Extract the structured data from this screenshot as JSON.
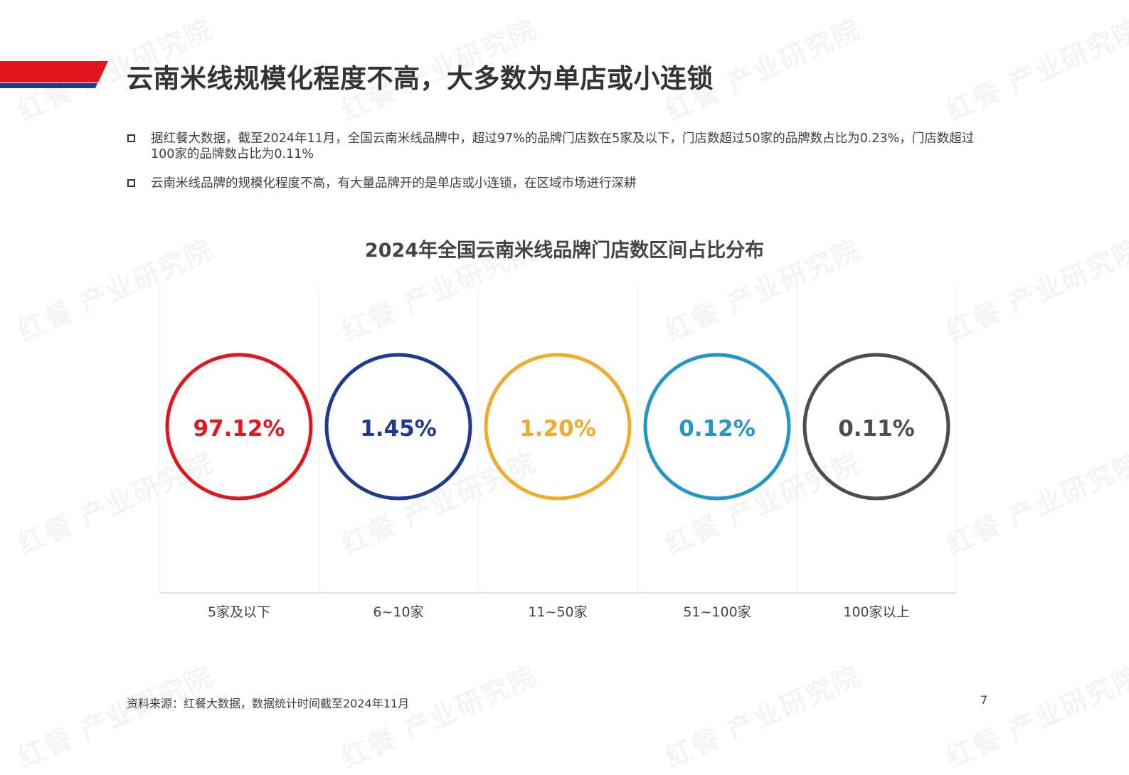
{
  "slide": {
    "title": "云南米线规模化程度不高，大多数为单店或小连锁",
    "bullets": [
      "据红餐大数据，截至2024年11月，全国云南米线品牌中，超过97%的品牌门店数在5家及以下，门店数超过50家的品牌数占比为0.23%，门店数超过100家的品牌数占比为0.11%",
      "云南米线品牌的规模化程度不高，有大量品牌开的是单店或小连锁，在区域市场进行深耕"
    ],
    "footnote": "资料来源：红餐大数据，数据统计时间截至2024年11月",
    "page_number": "7",
    "watermark": "红餐 产业研究院",
    "accent_colors": [
      "#e3161e",
      "#1d3a94"
    ]
  },
  "chart_data": {
    "type": "bubble",
    "title": "2024年全国云南米线品牌门店数区间占比分布",
    "categories": [
      "5家及以下",
      "6~10家",
      "11~50家",
      "51~100家",
      "100家以上"
    ],
    "values": [
      97.12,
      1.45,
      1.2,
      0.12,
      0.11
    ],
    "labels": [
      "97.12%",
      "1.45%",
      "1.20%",
      "0.12%",
      "0.11%"
    ],
    "unit": "%",
    "colors": [
      "#e3161e",
      "#1d3a94",
      "#f0ab2b",
      "#2296c9",
      "#4d4d4d"
    ],
    "grid": true
  }
}
